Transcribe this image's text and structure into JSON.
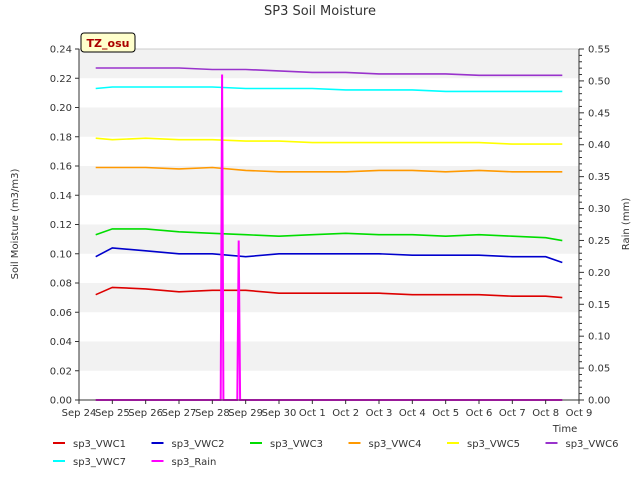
{
  "chart_data": {
    "type": "line",
    "title": "SP3 Soil Moisture",
    "site_badge": "TZ_osu",
    "xlabel": "Time",
    "ylabel": "Soil Moisture (m3/m3)",
    "y2label": "Rain (mm)",
    "x_tick_labels": [
      "Sep 24",
      "Sep 25",
      "Sep 26",
      "Sep 27",
      "Sep 28",
      "Sep 29",
      "Sep 30",
      "Oct 1",
      "Oct 2",
      "Oct 3",
      "Oct 4",
      "Oct 5",
      "Oct 6",
      "Oct 7",
      "Oct 8",
      "Oct 9"
    ],
    "xlim": [
      "Sep 24",
      "Oct 9"
    ],
    "ylim": [
      0,
      0.24
    ],
    "y_ticks": [
      "0.00",
      "0.02",
      "0.04",
      "0.06",
      "0.08",
      "0.10",
      "0.12",
      "0.14",
      "0.16",
      "0.18",
      "0.20",
      "0.22",
      "0.24"
    ],
    "y2lim": [
      0,
      0.55
    ],
    "y2_ticks": [
      "0.00",
      "0.05",
      "0.10",
      "0.15",
      "0.20",
      "0.25",
      "0.30",
      "0.35",
      "0.40",
      "0.45",
      "0.50",
      "0.55"
    ],
    "grid": "horizontal bands",
    "legend_placement": "bottom",
    "series": [
      {
        "name": "sp3_VWC1",
        "color": "#dd0000",
        "axis": "left",
        "values": [
          [
            "Sep 24 12:00",
            0.072
          ],
          [
            "Sep 25 00:00",
            0.077
          ],
          [
            "Sep 26 00:00",
            0.076
          ],
          [
            "Sep 27 00:00",
            0.074
          ],
          [
            "Sep 28 00:00",
            0.075
          ],
          [
            "Sep 29 00:00",
            0.075
          ],
          [
            "Sep 30 00:00",
            0.073
          ],
          [
            "Oct 1 00:00",
            0.073
          ],
          [
            "Oct 2 00:00",
            0.073
          ],
          [
            "Oct 3 00:00",
            0.073
          ],
          [
            "Oct 4 00:00",
            0.072
          ],
          [
            "Oct 5 00:00",
            0.072
          ],
          [
            "Oct 6 00:00",
            0.072
          ],
          [
            "Oct 7 00:00",
            0.071
          ],
          [
            "Oct 8 00:00",
            0.071
          ],
          [
            "Oct 8 12:00",
            0.07
          ]
        ]
      },
      {
        "name": "sp3_VWC2",
        "color": "#0000cc",
        "axis": "left",
        "values": [
          [
            "Sep 24 12:00",
            0.098
          ],
          [
            "Sep 25 00:00",
            0.104
          ],
          [
            "Sep 26 00:00",
            0.102
          ],
          [
            "Sep 27 00:00",
            0.1
          ],
          [
            "Sep 28 00:00",
            0.1
          ],
          [
            "Sep 29 00:00",
            0.098
          ],
          [
            "Sep 30 00:00",
            0.1
          ],
          [
            "Oct 1 00:00",
            0.1
          ],
          [
            "Oct 2 00:00",
            0.1
          ],
          [
            "Oct 3 00:00",
            0.1
          ],
          [
            "Oct 4 00:00",
            0.099
          ],
          [
            "Oct 5 00:00",
            0.099
          ],
          [
            "Oct 6 00:00",
            0.099
          ],
          [
            "Oct 7 00:00",
            0.098
          ],
          [
            "Oct 8 00:00",
            0.098
          ],
          [
            "Oct 8 12:00",
            0.094
          ]
        ]
      },
      {
        "name": "sp3_VWC3",
        "color": "#00dd00",
        "axis": "left",
        "values": [
          [
            "Sep 24 12:00",
            0.113
          ],
          [
            "Sep 25 00:00",
            0.117
          ],
          [
            "Sep 26 00:00",
            0.117
          ],
          [
            "Sep 27 00:00",
            0.115
          ],
          [
            "Sep 28 00:00",
            0.114
          ],
          [
            "Sep 29 00:00",
            0.113
          ],
          [
            "Sep 30 00:00",
            0.112
          ],
          [
            "Oct 1 00:00",
            0.113
          ],
          [
            "Oct 2 00:00",
            0.114
          ],
          [
            "Oct 3 00:00",
            0.113
          ],
          [
            "Oct 4 00:00",
            0.113
          ],
          [
            "Oct 5 00:00",
            0.112
          ],
          [
            "Oct 6 00:00",
            0.113
          ],
          [
            "Oct 7 00:00",
            0.112
          ],
          [
            "Oct 8 00:00",
            0.111
          ],
          [
            "Oct 8 12:00",
            0.109
          ]
        ]
      },
      {
        "name": "sp3_VWC4",
        "color": "#ff9900",
        "axis": "left",
        "values": [
          [
            "Sep 24 12:00",
            0.159
          ],
          [
            "Sep 25 00:00",
            0.159
          ],
          [
            "Sep 26 00:00",
            0.159
          ],
          [
            "Sep 27 00:00",
            0.158
          ],
          [
            "Sep 28 00:00",
            0.159
          ],
          [
            "Sep 29 00:00",
            0.157
          ],
          [
            "Sep 30 00:00",
            0.156
          ],
          [
            "Oct 1 00:00",
            0.156
          ],
          [
            "Oct 2 00:00",
            0.156
          ],
          [
            "Oct 3 00:00",
            0.157
          ],
          [
            "Oct 4 00:00",
            0.157
          ],
          [
            "Oct 5 00:00",
            0.156
          ],
          [
            "Oct 6 00:00",
            0.157
          ],
          [
            "Oct 7 00:00",
            0.156
          ],
          [
            "Oct 8 00:00",
            0.156
          ],
          [
            "Oct 8 12:00",
            0.156
          ]
        ]
      },
      {
        "name": "sp3_VWC5",
        "color": "#ffff00",
        "axis": "left",
        "values": [
          [
            "Sep 24 12:00",
            0.179
          ],
          [
            "Sep 25 00:00",
            0.178
          ],
          [
            "Sep 26 00:00",
            0.179
          ],
          [
            "Sep 27 00:00",
            0.178
          ],
          [
            "Sep 28 00:00",
            0.178
          ],
          [
            "Sep 29 00:00",
            0.177
          ],
          [
            "Sep 30 00:00",
            0.177
          ],
          [
            "Oct 1 00:00",
            0.176
          ],
          [
            "Oct 2 00:00",
            0.176
          ],
          [
            "Oct 3 00:00",
            0.176
          ],
          [
            "Oct 4 00:00",
            0.176
          ],
          [
            "Oct 5 00:00",
            0.176
          ],
          [
            "Oct 6 00:00",
            0.176
          ],
          [
            "Oct 7 00:00",
            0.175
          ],
          [
            "Oct 8 00:00",
            0.175
          ],
          [
            "Oct 8 12:00",
            0.175
          ]
        ]
      },
      {
        "name": "sp3_VWC6",
        "color": "#9933cc",
        "axis": "left",
        "values": [
          [
            "Sep 24 12:00",
            0.227
          ],
          [
            "Sep 25 00:00",
            0.227
          ],
          [
            "Sep 26 00:00",
            0.227
          ],
          [
            "Sep 27 00:00",
            0.227
          ],
          [
            "Sep 28 00:00",
            0.226
          ],
          [
            "Sep 29 00:00",
            0.226
          ],
          [
            "Sep 30 00:00",
            0.225
          ],
          [
            "Oct 1 00:00",
            0.224
          ],
          [
            "Oct 2 00:00",
            0.224
          ],
          [
            "Oct 3 00:00",
            0.223
          ],
          [
            "Oct 4 00:00",
            0.223
          ],
          [
            "Oct 5 00:00",
            0.223
          ],
          [
            "Oct 6 00:00",
            0.222
          ],
          [
            "Oct 7 00:00",
            0.222
          ],
          [
            "Oct 8 00:00",
            0.222
          ],
          [
            "Oct 8 12:00",
            0.222
          ]
        ]
      },
      {
        "name": "sp3_VWC7",
        "color": "#00ffff",
        "axis": "left",
        "values": [
          [
            "Sep 24 12:00",
            0.213
          ],
          [
            "Sep 25 00:00",
            0.214
          ],
          [
            "Sep 26 00:00",
            0.214
          ],
          [
            "Sep 27 00:00",
            0.214
          ],
          [
            "Sep 28 00:00",
            0.214
          ],
          [
            "Sep 29 00:00",
            0.213
          ],
          [
            "Sep 30 00:00",
            0.213
          ],
          [
            "Oct 1 00:00",
            0.213
          ],
          [
            "Oct 2 00:00",
            0.212
          ],
          [
            "Oct 3 00:00",
            0.212
          ],
          [
            "Oct 4 00:00",
            0.212
          ],
          [
            "Oct 5 00:00",
            0.211
          ],
          [
            "Oct 6 00:00",
            0.211
          ],
          [
            "Oct 7 00:00",
            0.211
          ],
          [
            "Oct 8 00:00",
            0.211
          ],
          [
            "Oct 8 12:00",
            0.211
          ]
        ]
      },
      {
        "name": "sp3_Rain",
        "color": "#ff00ff",
        "axis": "right",
        "values": [
          [
            "Sep 24 12:00",
            0
          ],
          [
            "Sep 28 06:00",
            0
          ],
          [
            "Sep 28 07:00",
            0.51
          ],
          [
            "Sep 28 08:00",
            0
          ],
          [
            "Sep 28 18:00",
            0
          ],
          [
            "Sep 28 19:00",
            0.25
          ],
          [
            "Sep 28 20:00",
            0
          ],
          [
            "Oct 8 12:00",
            0
          ]
        ]
      }
    ]
  }
}
